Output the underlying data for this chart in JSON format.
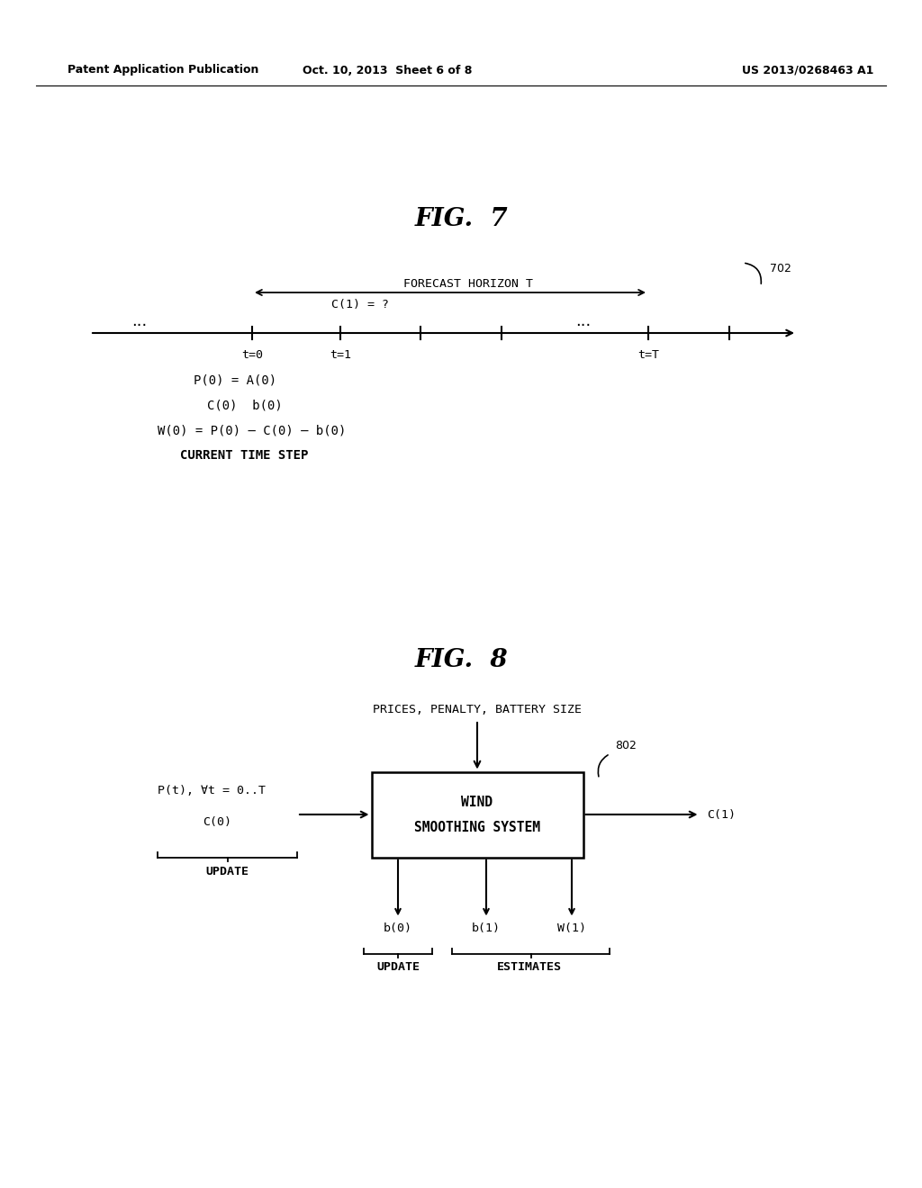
{
  "bg_color": "#ffffff",
  "header_left": "Patent Application Publication",
  "header_mid": "Oct. 10, 2013  Sheet 6 of 8",
  "header_right": "US 2013/0268463 A1",
  "fig7_title": "FIG.  7",
  "fig7_label": "702",
  "fig7_forecast_label": "FORECAST HORIZON T",
  "fig7_c1_label": "C(1) = ?",
  "fig7_t0": "t=0",
  "fig7_t1": "t=1",
  "fig7_tT": "t=T",
  "fig7_dots": "...",
  "fig7_eq1": "P(0) = A(0)",
  "fig7_eq2": "C(0)  b(0)",
  "fig7_eq3": "W(0) = P(0) – C(0) – b(0)",
  "fig7_eq4": "CURRENT TIME STEP",
  "fig8_title": "FIG.  8",
  "fig8_label": "802",
  "fig8_top_label": "PRICES, PENALTY, BATTERY SIZE",
  "fig8_box_line1": "WIND",
  "fig8_box_line2": "SMOOTHING SYSTEM",
  "fig8_left_line1": "P(t), ∀t = 0..T",
  "fig8_left_line2": "C(0)",
  "fig8_left_brace_label": "UPDATE",
  "fig8_right_label": "C(1)",
  "fig8_b0": "b(0)",
  "fig8_b1": "b(1)",
  "fig8_W1": "W(1)",
  "fig8_update_label": "UPDATE",
  "fig8_estimates_label": "ESTIMATES"
}
